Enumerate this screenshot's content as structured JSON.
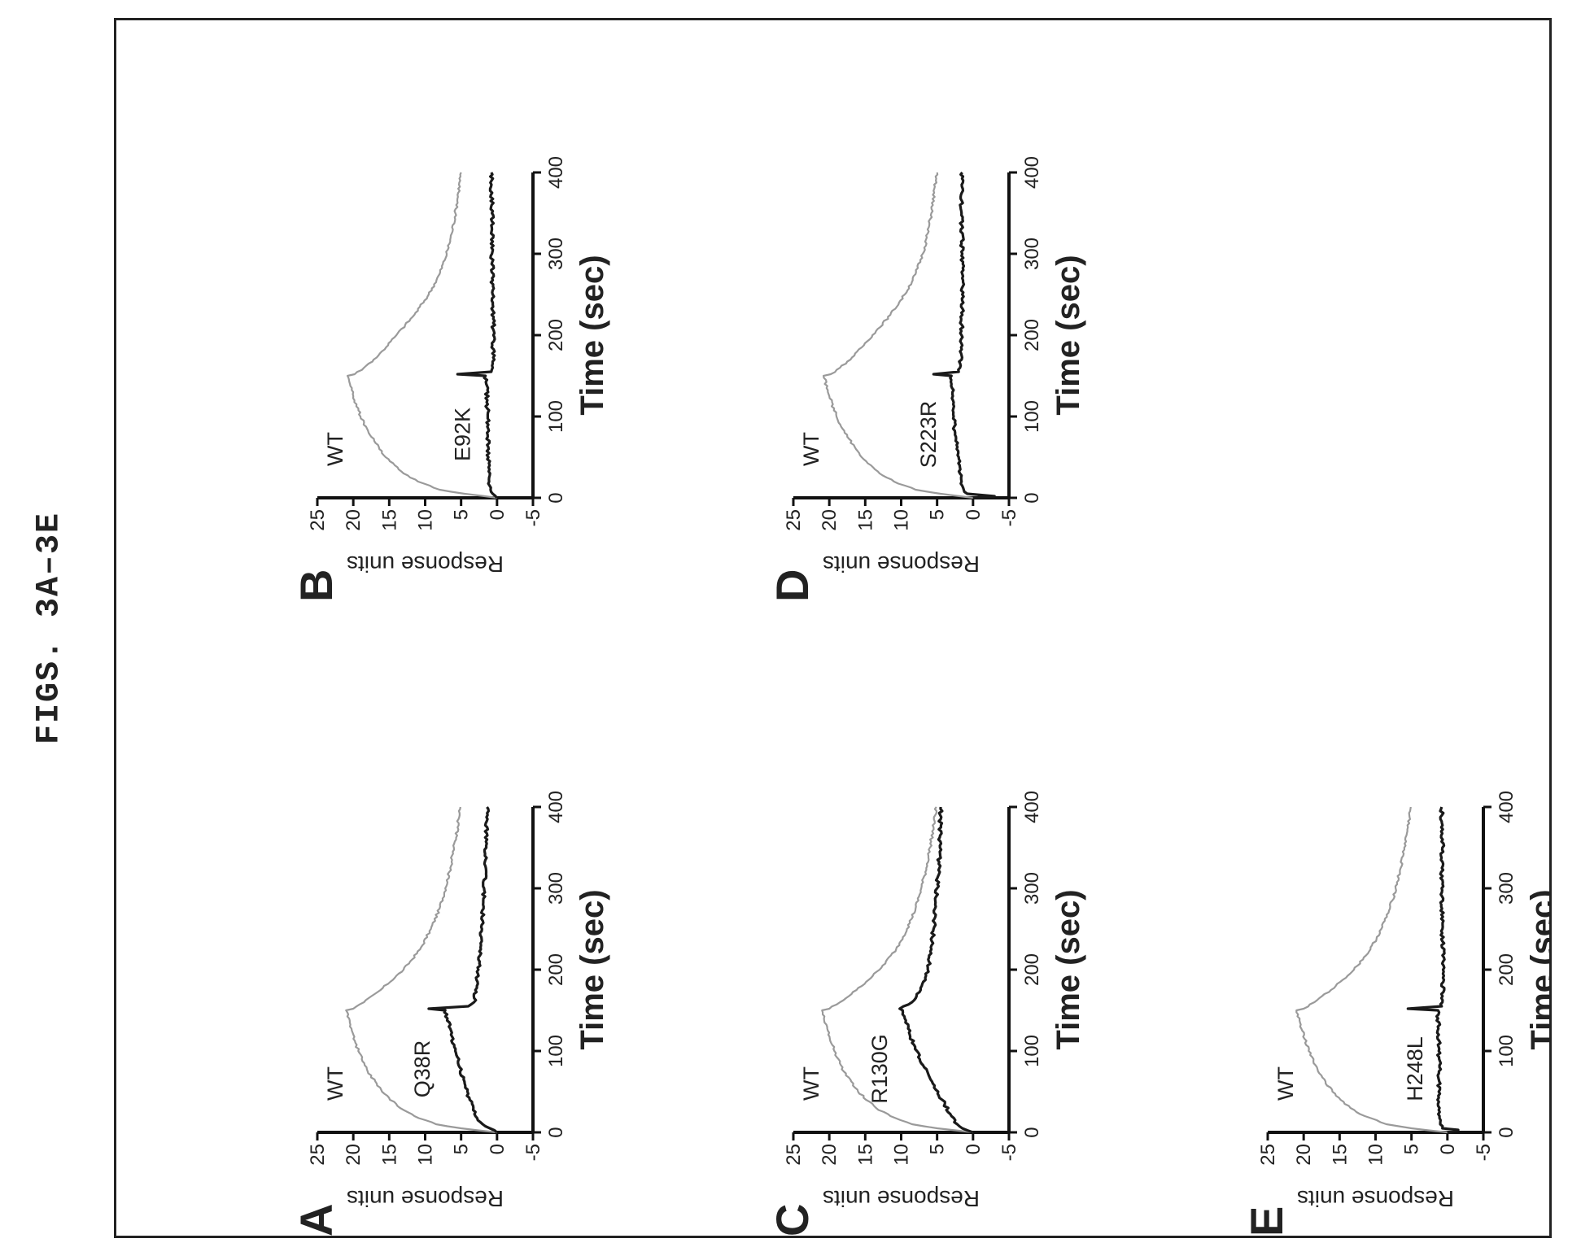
{
  "figure_title": "FIGS. 3A–3E",
  "colors": {
    "mutant": "#1a1a1a",
    "wt": "#9a9a9a",
    "axis": "#111111",
    "frame": "#222222"
  },
  "chart_data": [
    {
      "panel": "A",
      "type": "line",
      "xlabel": "Time (sec)",
      "ylabel": "Response units",
      "xlim": [
        0,
        400
      ],
      "ylim": [
        -5,
        25
      ],
      "xticks": [
        0,
        100,
        200,
        300,
        400
      ],
      "yticks": [
        -5,
        0,
        5,
        10,
        15,
        20,
        25
      ],
      "series": [
        {
          "name": "WT",
          "x": [
            0,
            5,
            10,
            20,
            30,
            50,
            75,
            100,
            125,
            150,
            152,
            160,
            175,
            200,
            225,
            250,
            275,
            300,
            325,
            350,
            375,
            400
          ],
          "y": [
            0,
            5,
            8.5,
            11.5,
            13.5,
            16,
            18,
            19.3,
            20.2,
            21,
            20,
            18.5,
            16.2,
            13,
            10.7,
            9.2,
            8,
            7.2,
            6.5,
            6,
            5.5,
            5.1
          ]
        },
        {
          "name": "Q38R",
          "x": [
            0,
            5,
            10,
            20,
            40,
            60,
            80,
            100,
            120,
            140,
            150,
            152,
            155,
            160,
            180,
            200,
            250,
            300,
            350,
            400
          ],
          "y": [
            0,
            1,
            2,
            3,
            3.8,
            4.5,
            5.2,
            5.8,
            6.4,
            6.9,
            7.2,
            9.5,
            4,
            3.2,
            2.8,
            2.6,
            2.1,
            1.8,
            1.5,
            1.4
          ]
        }
      ]
    },
    {
      "panel": "B",
      "type": "line",
      "xlabel": "Time (sec)",
      "ylabel": "Response units",
      "xlim": [
        0,
        400
      ],
      "ylim": [
        -5,
        25
      ],
      "xticks": [
        0,
        100,
        200,
        300,
        400
      ],
      "yticks": [
        -5,
        0,
        5,
        10,
        15,
        20,
        25
      ],
      "series": [
        {
          "name": "WT",
          "x": [
            0,
            5,
            10,
            20,
            30,
            50,
            75,
            100,
            125,
            150,
            152,
            160,
            175,
            200,
            225,
            250,
            275,
            300,
            325,
            350,
            375,
            400
          ],
          "y": [
            0,
            4.5,
            8,
            11,
            13,
            15.5,
            17.5,
            19,
            20,
            20.8,
            19.8,
            18.5,
            16.5,
            14,
            11.5,
            9.5,
            8,
            7,
            6.3,
            5.8,
            5.4,
            5
          ]
        },
        {
          "name": "E92K",
          "x": [
            0,
            5,
            10,
            20,
            50,
            100,
            140,
            150,
            152,
            155,
            160,
            200,
            250,
            300,
            350,
            400
          ],
          "y": [
            0,
            0.6,
            0.9,
            1.1,
            1.2,
            1.3,
            1.5,
            1.6,
            5.5,
            0.8,
            0.6,
            0.5,
            0.6,
            0.7,
            0.7,
            0.8
          ]
        }
      ]
    },
    {
      "panel": "C",
      "type": "line",
      "xlabel": "Time (sec)",
      "ylabel": "Response units",
      "xlim": [
        0,
        400
      ],
      "ylim": [
        -5,
        25
      ],
      "xticks": [
        0,
        100,
        200,
        300,
        400
      ],
      "yticks": [
        -5,
        0,
        5,
        10,
        15,
        20,
        25
      ],
      "series": [
        {
          "name": "WT",
          "x": [
            0,
            5,
            10,
            20,
            30,
            50,
            75,
            100,
            125,
            150,
            152,
            160,
            175,
            200,
            225,
            250,
            275,
            300,
            325,
            350,
            375,
            400
          ],
          "y": [
            0,
            5,
            8.5,
            11.5,
            13.5,
            16,
            18,
            19.3,
            20.2,
            21,
            20,
            18.5,
            16.2,
            13,
            10.7,
            9.2,
            8,
            7.2,
            6.5,
            6,
            5.5,
            5.1
          ]
        },
        {
          "name": "R130G",
          "x": [
            0,
            5,
            10,
            20,
            40,
            60,
            80,
            100,
            120,
            140,
            150,
            152,
            160,
            175,
            200,
            225,
            250,
            300,
            350,
            400
          ],
          "y": [
            0,
            1.5,
            2.2,
            3,
            4.3,
            5.6,
            6.8,
            7.8,
            8.8,
            9.5,
            9.8,
            10.2,
            8.5,
            7.3,
            6.3,
            5.8,
            5.5,
            5,
            4.6,
            4.5
          ]
        }
      ]
    },
    {
      "panel": "D",
      "type": "line",
      "xlabel": "Time (sec)",
      "ylabel": "Response units",
      "xlim": [
        0,
        400
      ],
      "ylim": [
        -5,
        25
      ],
      "xticks": [
        0,
        100,
        200,
        300,
        400
      ],
      "yticks": [
        -5,
        0,
        5,
        10,
        15,
        20,
        25
      ],
      "series": [
        {
          "name": "WT",
          "x": [
            0,
            5,
            10,
            20,
            30,
            50,
            75,
            100,
            125,
            150,
            152,
            160,
            175,
            200,
            225,
            250,
            275,
            300,
            325,
            350,
            375,
            400
          ],
          "y": [
            0,
            4.5,
            8,
            11,
            13,
            15.5,
            17.5,
            19,
            20,
            20.8,
            19.8,
            18.5,
            16.5,
            14,
            11.5,
            9.5,
            8,
            7,
            6.3,
            5.8,
            5.4,
            5
          ]
        },
        {
          "name": "S223R",
          "x": [
            0,
            2,
            5,
            10,
            20,
            50,
            80,
            100,
            120,
            140,
            150,
            152,
            155,
            160,
            200,
            250,
            300,
            350,
            400
          ],
          "y": [
            0,
            -3,
            0.8,
            1.3,
            1.6,
            2,
            2.5,
            2.7,
            2.8,
            3,
            3,
            5.5,
            2,
            1.8,
            1.6,
            1.5,
            1.5,
            1.6,
            1.5
          ]
        }
      ]
    },
    {
      "panel": "E",
      "type": "line",
      "xlabel": "Time (sec)",
      "ylabel": "Response units",
      "xlim": [
        0,
        400
      ],
      "ylim": [
        -5,
        25
      ],
      "xticks": [
        0,
        100,
        200,
        300,
        400
      ],
      "yticks": [
        -5,
        0,
        5,
        10,
        15,
        20,
        25
      ],
      "series": [
        {
          "name": "WT",
          "x": [
            0,
            5,
            10,
            20,
            30,
            50,
            75,
            100,
            125,
            150,
            152,
            160,
            175,
            200,
            225,
            250,
            275,
            300,
            325,
            350,
            375,
            400
          ],
          "y": [
            0,
            5,
            8.5,
            11.5,
            13.5,
            16,
            18,
            19.3,
            20.2,
            21,
            20,
            18.5,
            16.2,
            13,
            10.7,
            9.2,
            8,
            7.2,
            6.5,
            6,
            5.5,
            5.1
          ]
        },
        {
          "name": "H248L",
          "x": [
            0,
            3,
            5,
            10,
            20,
            50,
            80,
            100,
            120,
            140,
            150,
            152,
            155,
            160,
            200,
            250,
            300,
            350,
            400
          ],
          "y": [
            0,
            -1.5,
            0.7,
            1,
            1.1,
            1.2,
            1.1,
            1.2,
            1.2,
            1.3,
            1.3,
            5.5,
            0.8,
            0.7,
            0.6,
            0.7,
            0.8,
            0.7,
            0.8
          ]
        }
      ]
    }
  ]
}
